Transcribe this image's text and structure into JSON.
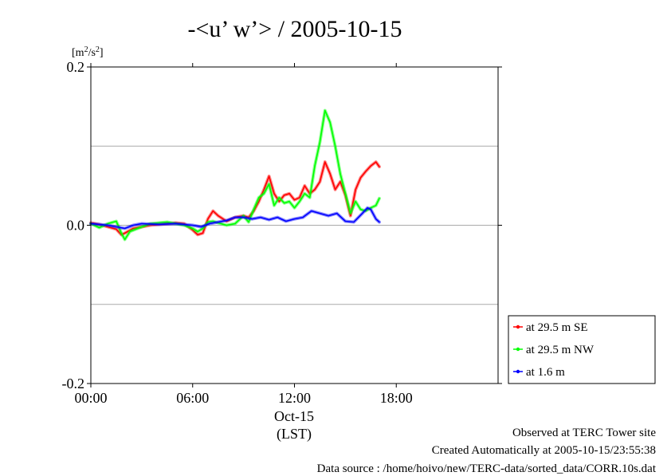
{
  "chart_data": {
    "type": "line",
    "title": "-<u’ w’> / 2005-10-15",
    "yunit": "[m2/s2]",
    "xlabel": "(LST)",
    "date_label": "Oct-15",
    "xlim": [
      0,
      24
    ],
    "ylim": [
      -0.2,
      0.2
    ],
    "x_ticks": [
      {
        "value": 0,
        "label": "00:00"
      },
      {
        "value": 6,
        "label": "06:00"
      },
      {
        "value": 12,
        "label": "12:00"
      },
      {
        "value": 18,
        "label": "18:00"
      }
    ],
    "y_ticks": [
      {
        "value": -0.2,
        "label": "-0.2"
      },
      {
        "value": 0.0,
        "label": "0.0"
      },
      {
        "value": 0.2,
        "label": "0.2"
      }
    ],
    "gridlines_y": [
      -0.1,
      0.0,
      0.1
    ],
    "legend_position": "right-bottom, outside plot",
    "series": [
      {
        "name": "at 29.5 m SE",
        "color": "#ff0000",
        "points": [
          [
            0,
            0.003
          ],
          [
            0.5,
            0.001
          ],
          [
            1,
            -0.002
          ],
          [
            1.5,
            -0.005
          ],
          [
            1.8,
            -0.012
          ],
          [
            2,
            -0.01
          ],
          [
            2.5,
            -0.004
          ],
          [
            3,
            -0.002
          ],
          [
            3.5,
            0.0
          ],
          [
            4,
            0.001
          ],
          [
            4.5,
            0.002
          ],
          [
            5,
            0.003
          ],
          [
            5.5,
            0.002
          ],
          [
            6,
            -0.006
          ],
          [
            6.3,
            -0.012
          ],
          [
            6.6,
            -0.01
          ],
          [
            6.9,
            0.008
          ],
          [
            7.2,
            0.018
          ],
          [
            7.5,
            0.012
          ],
          [
            8,
            0.005
          ],
          [
            8.5,
            0.01
          ],
          [
            9,
            0.012
          ],
          [
            9.3,
            0.01
          ],
          [
            9.6,
            0.018
          ],
          [
            9.9,
            0.03
          ],
          [
            10.2,
            0.045
          ],
          [
            10.5,
            0.062
          ],
          [
            10.8,
            0.04
          ],
          [
            11.1,
            0.03
          ],
          [
            11.4,
            0.038
          ],
          [
            11.7,
            0.04
          ],
          [
            12,
            0.032
          ],
          [
            12.3,
            0.035
          ],
          [
            12.6,
            0.05
          ],
          [
            12.9,
            0.04
          ],
          [
            13.2,
            0.045
          ],
          [
            13.5,
            0.055
          ],
          [
            13.8,
            0.08
          ],
          [
            14.1,
            0.065
          ],
          [
            14.4,
            0.045
          ],
          [
            14.7,
            0.055
          ],
          [
            15,
            0.038
          ],
          [
            15.3,
            0.012
          ],
          [
            15.6,
            0.045
          ],
          [
            15.9,
            0.06
          ],
          [
            16.2,
            0.068
          ],
          [
            16.5,
            0.075
          ],
          [
            16.8,
            0.08
          ],
          [
            17,
            0.074
          ]
        ]
      },
      {
        "name": "at 29.5 m NW",
        "color": "#00ff00",
        "points": [
          [
            0,
            0.002
          ],
          [
            0.5,
            -0.003
          ],
          [
            1,
            0.002
          ],
          [
            1.5,
            0.005
          ],
          [
            1.8,
            -0.01
          ],
          [
            2,
            -0.018
          ],
          [
            2.3,
            -0.008
          ],
          [
            3,
            -0.002
          ],
          [
            3.5,
            0.002
          ],
          [
            4,
            0.003
          ],
          [
            4.5,
            0.004
          ],
          [
            5,
            0.002
          ],
          [
            5.5,
            0.0
          ],
          [
            6,
            -0.004
          ],
          [
            6.3,
            -0.008
          ],
          [
            6.6,
            -0.004
          ],
          [
            6.9,
            0.004
          ],
          [
            7.2,
            0.005
          ],
          [
            7.5,
            0.003
          ],
          [
            8,
            0.0
          ],
          [
            8.5,
            0.002
          ],
          [
            9,
            0.012
          ],
          [
            9.3,
            0.004
          ],
          [
            9.6,
            0.02
          ],
          [
            9.9,
            0.035
          ],
          [
            10.2,
            0.04
          ],
          [
            10.5,
            0.052
          ],
          [
            10.8,
            0.025
          ],
          [
            11.1,
            0.035
          ],
          [
            11.4,
            0.028
          ],
          [
            11.7,
            0.03
          ],
          [
            12,
            0.022
          ],
          [
            12.3,
            0.03
          ],
          [
            12.6,
            0.04
          ],
          [
            12.9,
            0.035
          ],
          [
            13.2,
            0.075
          ],
          [
            13.5,
            0.105
          ],
          [
            13.8,
            0.145
          ],
          [
            14.1,
            0.13
          ],
          [
            14.4,
            0.1
          ],
          [
            14.7,
            0.065
          ],
          [
            15,
            0.04
          ],
          [
            15.3,
            0.015
          ],
          [
            15.6,
            0.03
          ],
          [
            15.9,
            0.02
          ],
          [
            16.2,
            0.018
          ],
          [
            16.5,
            0.022
          ],
          [
            16.8,
            0.025
          ],
          [
            17,
            0.034
          ]
        ]
      },
      {
        "name": "at 1.6 m",
        "color": "#0000ff",
        "points": [
          [
            0,
            0.002
          ],
          [
            1,
            0.0
          ],
          [
            2,
            -0.004
          ],
          [
            2.5,
            0.0
          ],
          [
            3,
            0.002
          ],
          [
            4,
            0.001
          ],
          [
            5,
            0.002
          ],
          [
            6,
            0.0
          ],
          [
            6.5,
            -0.002
          ],
          [
            7,
            0.002
          ],
          [
            8,
            0.006
          ],
          [
            8.5,
            0.01
          ],
          [
            9,
            0.01
          ],
          [
            9.5,
            0.008
          ],
          [
            10,
            0.01
          ],
          [
            10.5,
            0.007
          ],
          [
            11,
            0.01
          ],
          [
            11.5,
            0.005
          ],
          [
            12,
            0.008
          ],
          [
            12.5,
            0.01
          ],
          [
            13,
            0.018
          ],
          [
            13.5,
            0.015
          ],
          [
            14,
            0.012
          ],
          [
            14.5,
            0.015
          ],
          [
            15,
            0.005
          ],
          [
            15.5,
            0.004
          ],
          [
            16,
            0.015
          ],
          [
            16.3,
            0.022
          ],
          [
            16.5,
            0.02
          ],
          [
            16.8,
            0.008
          ],
          [
            17,
            0.004
          ]
        ]
      }
    ]
  },
  "footer": {
    "line1": "Observed at TERC Tower site",
    "line2": "Created Automatically at 2005-10-15/23:55:38",
    "line3": "Data source : /home/hoivo/new/TERC-data/sorted_data/CORR.10s.dat"
  }
}
